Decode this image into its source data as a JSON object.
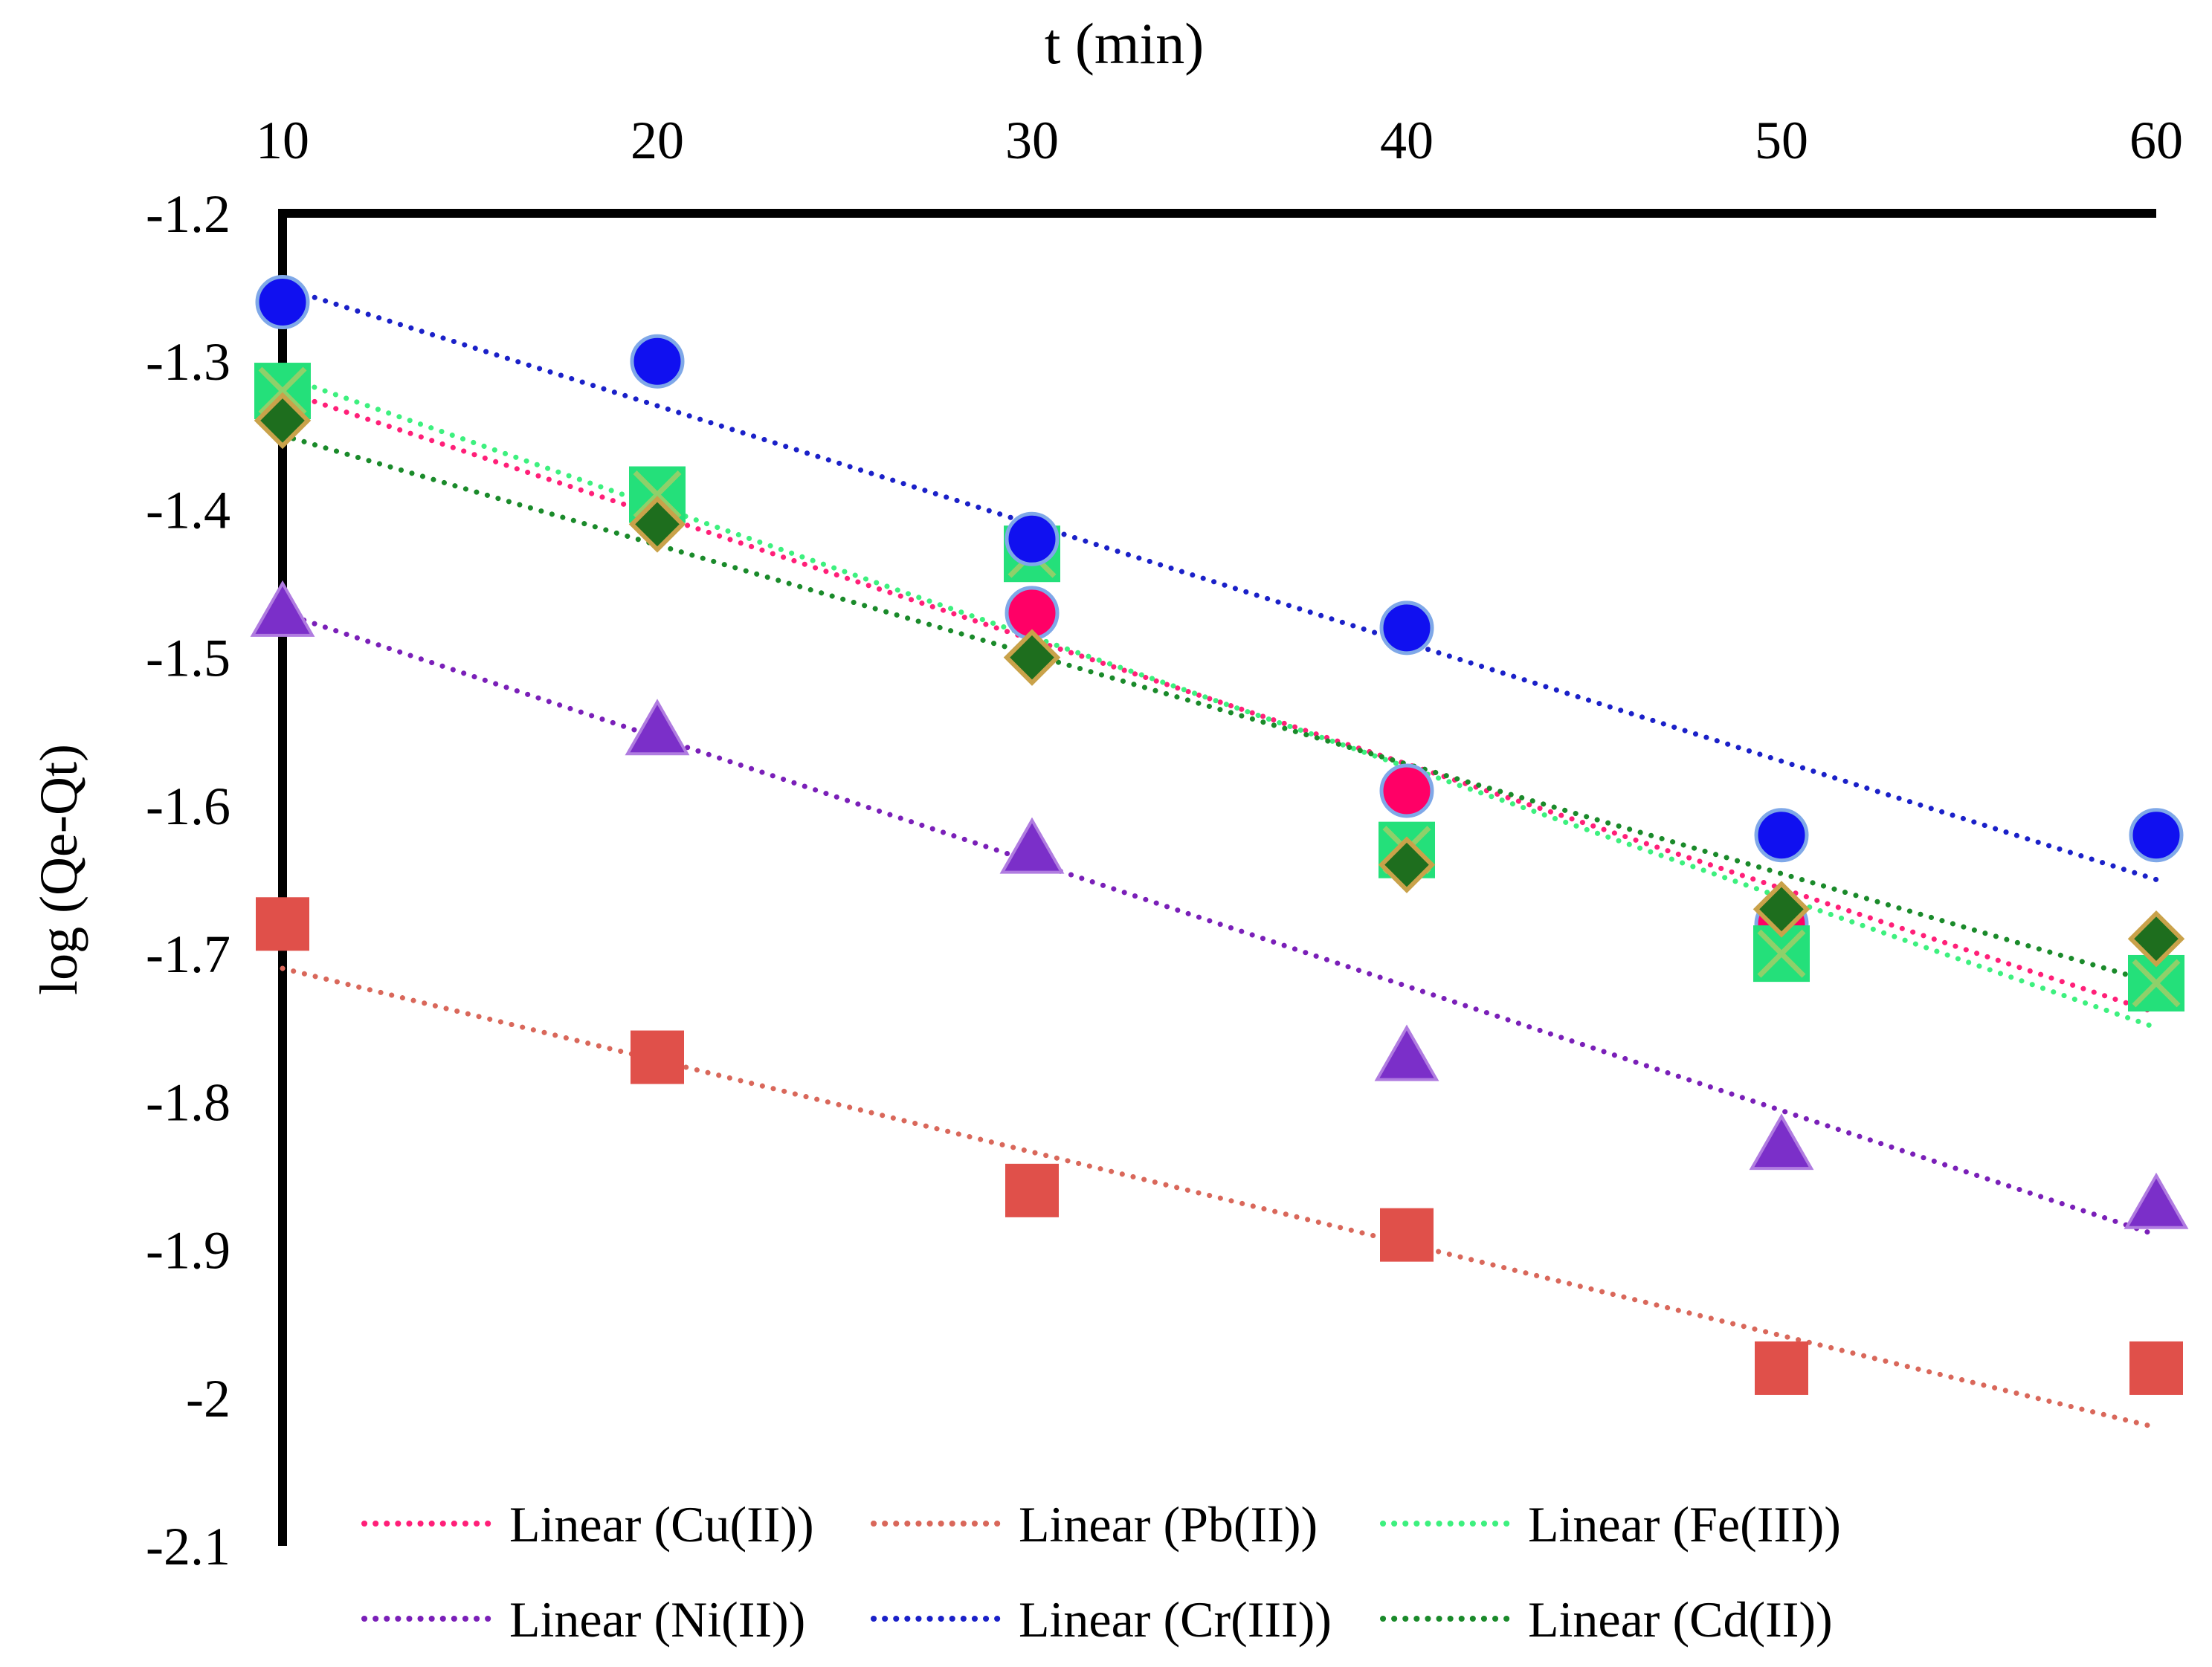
{
  "chart_data": {
    "type": "scatter",
    "title": "",
    "xlabel": "t (min)",
    "ylabel": "log (Qe-Qt)",
    "xlim": [
      10,
      60
    ],
    "ylim": [
      -2.1,
      -1.2
    ],
    "x_axis_position": "top",
    "x_ticks": [
      "10",
      "20",
      "30",
      "40",
      "50",
      "60"
    ],
    "y_ticks": [
      "-1.2",
      "-1.3",
      "-1.4",
      "-1.5",
      "-1.6",
      "-1.7",
      "-1.8",
      "-1.9",
      "-2",
      "-2.1"
    ],
    "x": [
      10,
      20,
      30,
      40,
      50,
      60
    ],
    "legend_position": "bottom",
    "series": [
      {
        "name": "Cu(II)",
        "marker": "circle",
        "color": "#FF0066",
        "values": [
          -1.33,
          -1.4,
          -1.47,
          -1.59,
          -1.68,
          -1.72
        ],
        "trend_label": "Linear (Cu(II))",
        "trend_color": "#FF1F78",
        "trend": [
          -1.32,
          -1.74
        ]
      },
      {
        "name": "Pb(II)",
        "marker": "square",
        "color": "#E0504A",
        "values": [
          -1.68,
          -1.77,
          -1.86,
          -1.89,
          -1.98,
          -1.98
        ],
        "trend_label": "Linear (Pb(II))",
        "trend_color": "#D9675A",
        "trend": [
          -1.71,
          -2.02
        ]
      },
      {
        "name": "Fe(III)",
        "marker": "square-x",
        "color": "#24E07A",
        "values": [
          -1.32,
          -1.39,
          -1.43,
          -1.63,
          -1.7,
          -1.72
        ],
        "trend_label": "Linear (Fe(III))",
        "trend_color": "#3DF07E",
        "trend": [
          -1.31,
          -1.75
        ]
      },
      {
        "name": "Ni(II)",
        "marker": "triangle",
        "color": "#7B2FC9",
        "values": [
          -1.47,
          -1.55,
          -1.63,
          -1.77,
          -1.83,
          -1.87
        ],
        "trend_label": "Linear (Ni(II))",
        "trend_color": "#7A1FB8",
        "trend": [
          -1.47,
          -1.89
        ]
      },
      {
        "name": "Cr(III)",
        "marker": "circle",
        "color": "#1010F0",
        "values": [
          -1.26,
          -1.3,
          -1.42,
          -1.48,
          -1.62,
          -1.62
        ],
        "trend_label": "Linear (Cr(III))",
        "trend_color": "#1A20C8",
        "trend": [
          -1.25,
          -1.65
        ]
      },
      {
        "name": "Cd(II)",
        "marker": "diamond",
        "color": "#1E6E1E",
        "values": [
          -1.34,
          -1.41,
          -1.5,
          -1.64,
          -1.67,
          -1.69
        ],
        "trend_label": "Linear (Cd(II))",
        "trend_color": "#1A8A2A",
        "trend": [
          -1.35,
          -1.72
        ]
      }
    ]
  }
}
